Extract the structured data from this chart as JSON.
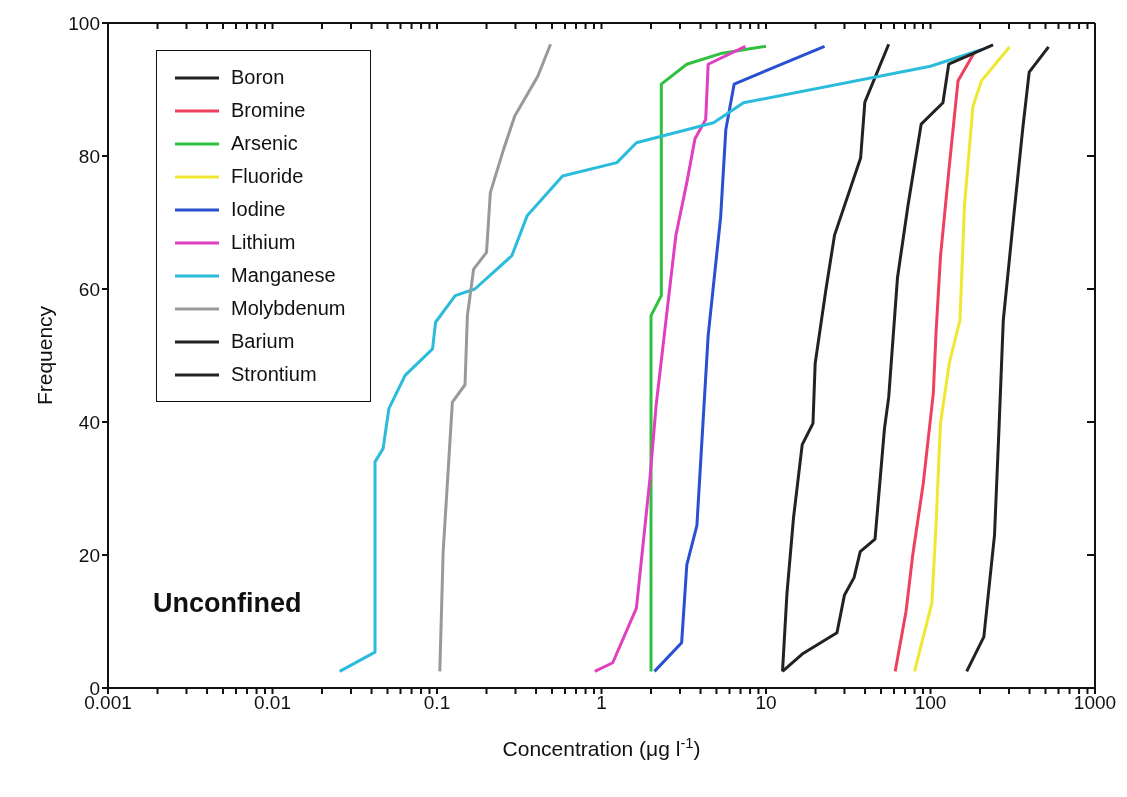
{
  "chart_data": {
    "type": "line",
    "xlabel": "Concentration  (μg l$^{-1}$)",
    "ylabel": "Frequency",
    "annotations": [
      "Unconfined"
    ],
    "log": "x",
    "xlim": [
      0.001,
      1000
    ],
    "ylim": [
      0,
      100
    ],
    "xticks": [
      0.001,
      {
        "value": 0.002,
        "label": null
      },
      {
        "value": 0.003,
        "label": null
      },
      {
        "value": 0.004,
        "label": null
      },
      {
        "value": 0.005,
        "label": null
      },
      {
        "value": 0.006,
        "label": null
      },
      {
        "value": 0.007,
        "label": null
      },
      {
        "value": 0.008,
        "label": null
      },
      {
        "value": 0.009,
        "label": null
      },
      0.01,
      {
        "value": 0.02,
        "label": null
      },
      {
        "value": 0.03,
        "label": null
      },
      {
        "value": 0.04,
        "label": null
      },
      {
        "value": 0.05,
        "label": null
      },
      {
        "value": 0.06,
        "label": null
      },
      {
        "value": 0.07,
        "label": null
      },
      {
        "value": 0.08,
        "label": null
      },
      {
        "value": 0.09,
        "label": null
      },
      0.1,
      {
        "value": 0.2,
        "label": null
      },
      {
        "value": 0.3,
        "label": null
      },
      {
        "value": 0.4,
        "label": null
      },
      {
        "value": 0.5,
        "label": null
      },
      {
        "value": 0.6,
        "label": null
      },
      {
        "value": 0.7,
        "label": null
      },
      {
        "value": 0.8,
        "label": null
      },
      {
        "value": 0.9,
        "label": null
      },
      1,
      {
        "value": 2,
        "label": null
      },
      {
        "value": 3,
        "label": null
      },
      {
        "value": 4,
        "label": null
      },
      {
        "value": 5,
        "label": null
      },
      {
        "value": 6,
        "label": null
      },
      {
        "value": 7,
        "label": null
      },
      {
        "value": 8,
        "label": null
      },
      {
        "value": 9,
        "label": null
      },
      10,
      {
        "value": 20,
        "label": null
      },
      {
        "value": 30,
        "label": null
      },
      {
        "value": 40,
        "label": null
      },
      {
        "value": 50,
        "label": null
      },
      {
        "value": 60,
        "label": null
      },
      {
        "value": 70,
        "label": null
      },
      {
        "value": 80,
        "label": null
      },
      {
        "value": 90,
        "label": null
      },
      100,
      {
        "value": 200,
        "label": null
      },
      {
        "value": 300,
        "label": null
      },
      {
        "value": 400,
        "label": null
      },
      {
        "value": 500,
        "label": null
      },
      {
        "value": 600,
        "label": null
      },
      {
        "value": 700,
        "label": null
      },
      {
        "value": 800,
        "label": null
      },
      {
        "value": 900,
        "label": null
      },
      1000
    ],
    "yticks": [
      0,
      20,
      40,
      60,
      80,
      100
    ],
    "grid": false,
    "legend": "top left",
    "marker": "none",
    "line_style": "solid",
    "series": [
      {
        "name": "Boron",
        "color": "#222222",
        "x": [
          12.6,
          13.4,
          14.7,
          16.6,
          19.3,
          19.9,
          23.1,
          26.1,
          37.6,
          39.9,
          55.7
        ],
        "values": [
          2.5,
          14.1,
          25.6,
          36.6,
          39.8,
          48.8,
          59.8,
          68.1,
          79.7,
          88.1,
          96.8
        ]
      },
      {
        "name": "Bromine",
        "color": "#f04060",
        "x": [
          61,
          71,
          77.8,
          90.4,
          104,
          108,
          115,
          130,
          147,
          187
        ],
        "values": [
          2.5,
          11.5,
          19.8,
          30.8,
          44.3,
          53.3,
          64.9,
          78.4,
          91.3,
          95.8
        ]
      },
      {
        "name": "Arsenic",
        "color": "#30c040",
        "x": [
          2,
          2,
          2.31,
          2.31,
          3.3,
          5.3,
          10
        ],
        "values": [
          2.5,
          56,
          59,
          90.8,
          93.8,
          95.4,
          96.5
        ]
      },
      {
        "name": "Fluoride",
        "color": "#f0e830",
        "x": [
          80,
          102,
          108,
          115,
          130,
          151,
          161,
          181,
          204,
          302
        ],
        "values": [
          2.5,
          12.8,
          24.4,
          39.8,
          48.8,
          55.3,
          72.6,
          87.4,
          91.3,
          96.4
        ]
      },
      {
        "name": "Iodine",
        "color": "#2850d0",
        "x": [
          2.1,
          3.07,
          3.3,
          3.8,
          4.45,
          5.3,
          5.7,
          6.4,
          22.7
        ],
        "values": [
          2.5,
          6.8,
          18.5,
          24.4,
          53,
          70.8,
          84,
          90.8,
          96.5
        ]
      },
      {
        "name": "Lithium",
        "color": "#e040c0",
        "x": [
          0.91,
          1.17,
          1.63,
          1.97,
          2.15,
          2.55,
          2.83,
          3.3,
          3.7,
          4.3,
          4.45,
          7.5
        ],
        "values": [
          2.5,
          3.8,
          12,
          31.5,
          42.6,
          58.4,
          68,
          76,
          82.6,
          85.5,
          93.8,
          96.5
        ]
      },
      {
        "name": "Manganese",
        "color": "#2bbcdc",
        "x": [
          0.0256,
          0.042,
          0.042,
          0.047,
          0.051,
          0.064,
          0.094,
          0.098,
          0.129,
          0.17,
          0.285,
          0.353,
          0.58,
          1.24,
          1.63,
          4.8,
          7.3,
          100,
          204
        ],
        "values": [
          2.5,
          5.4,
          34,
          36,
          42,
          47,
          51,
          55,
          59,
          60,
          65,
          71,
          77,
          79,
          82,
          85,
          88,
          93.5,
          96
        ]
      },
      {
        "name": "Molybdenum",
        "color": "#999999",
        "x": [
          0.104,
          0.109,
          0.124,
          0.148,
          0.153,
          0.167,
          0.2,
          0.211,
          0.254,
          0.297,
          0.41,
          0.49
        ],
        "values": [
          2.5,
          20.5,
          43,
          45.6,
          56,
          63,
          65.5,
          74.5,
          81,
          86,
          92,
          96.8
        ]
      },
      {
        "name": "Barium",
        "color": "#222222",
        "x": [
          12.6,
          16.6,
          27,
          30,
          34.3,
          37.4,
          46,
          52.5,
          55.7,
          63,
          73,
          87.8,
          119,
          129,
          240
        ],
        "values": [
          2.5,
          5.1,
          8.3,
          14,
          16.6,
          20.5,
          22.4,
          39,
          43.7,
          61.7,
          72.6,
          84.8,
          88,
          93.8,
          96.7
        ]
      },
      {
        "name": "Strontium",
        "color": "#222222",
        "x": [
          166,
          211,
          245,
          261,
          277,
          322,
          364,
          398,
          522
        ],
        "values": [
          2.5,
          7.7,
          23,
          39.2,
          55.3,
          71.4,
          84.2,
          92.6,
          96.4
        ]
      }
    ]
  }
}
